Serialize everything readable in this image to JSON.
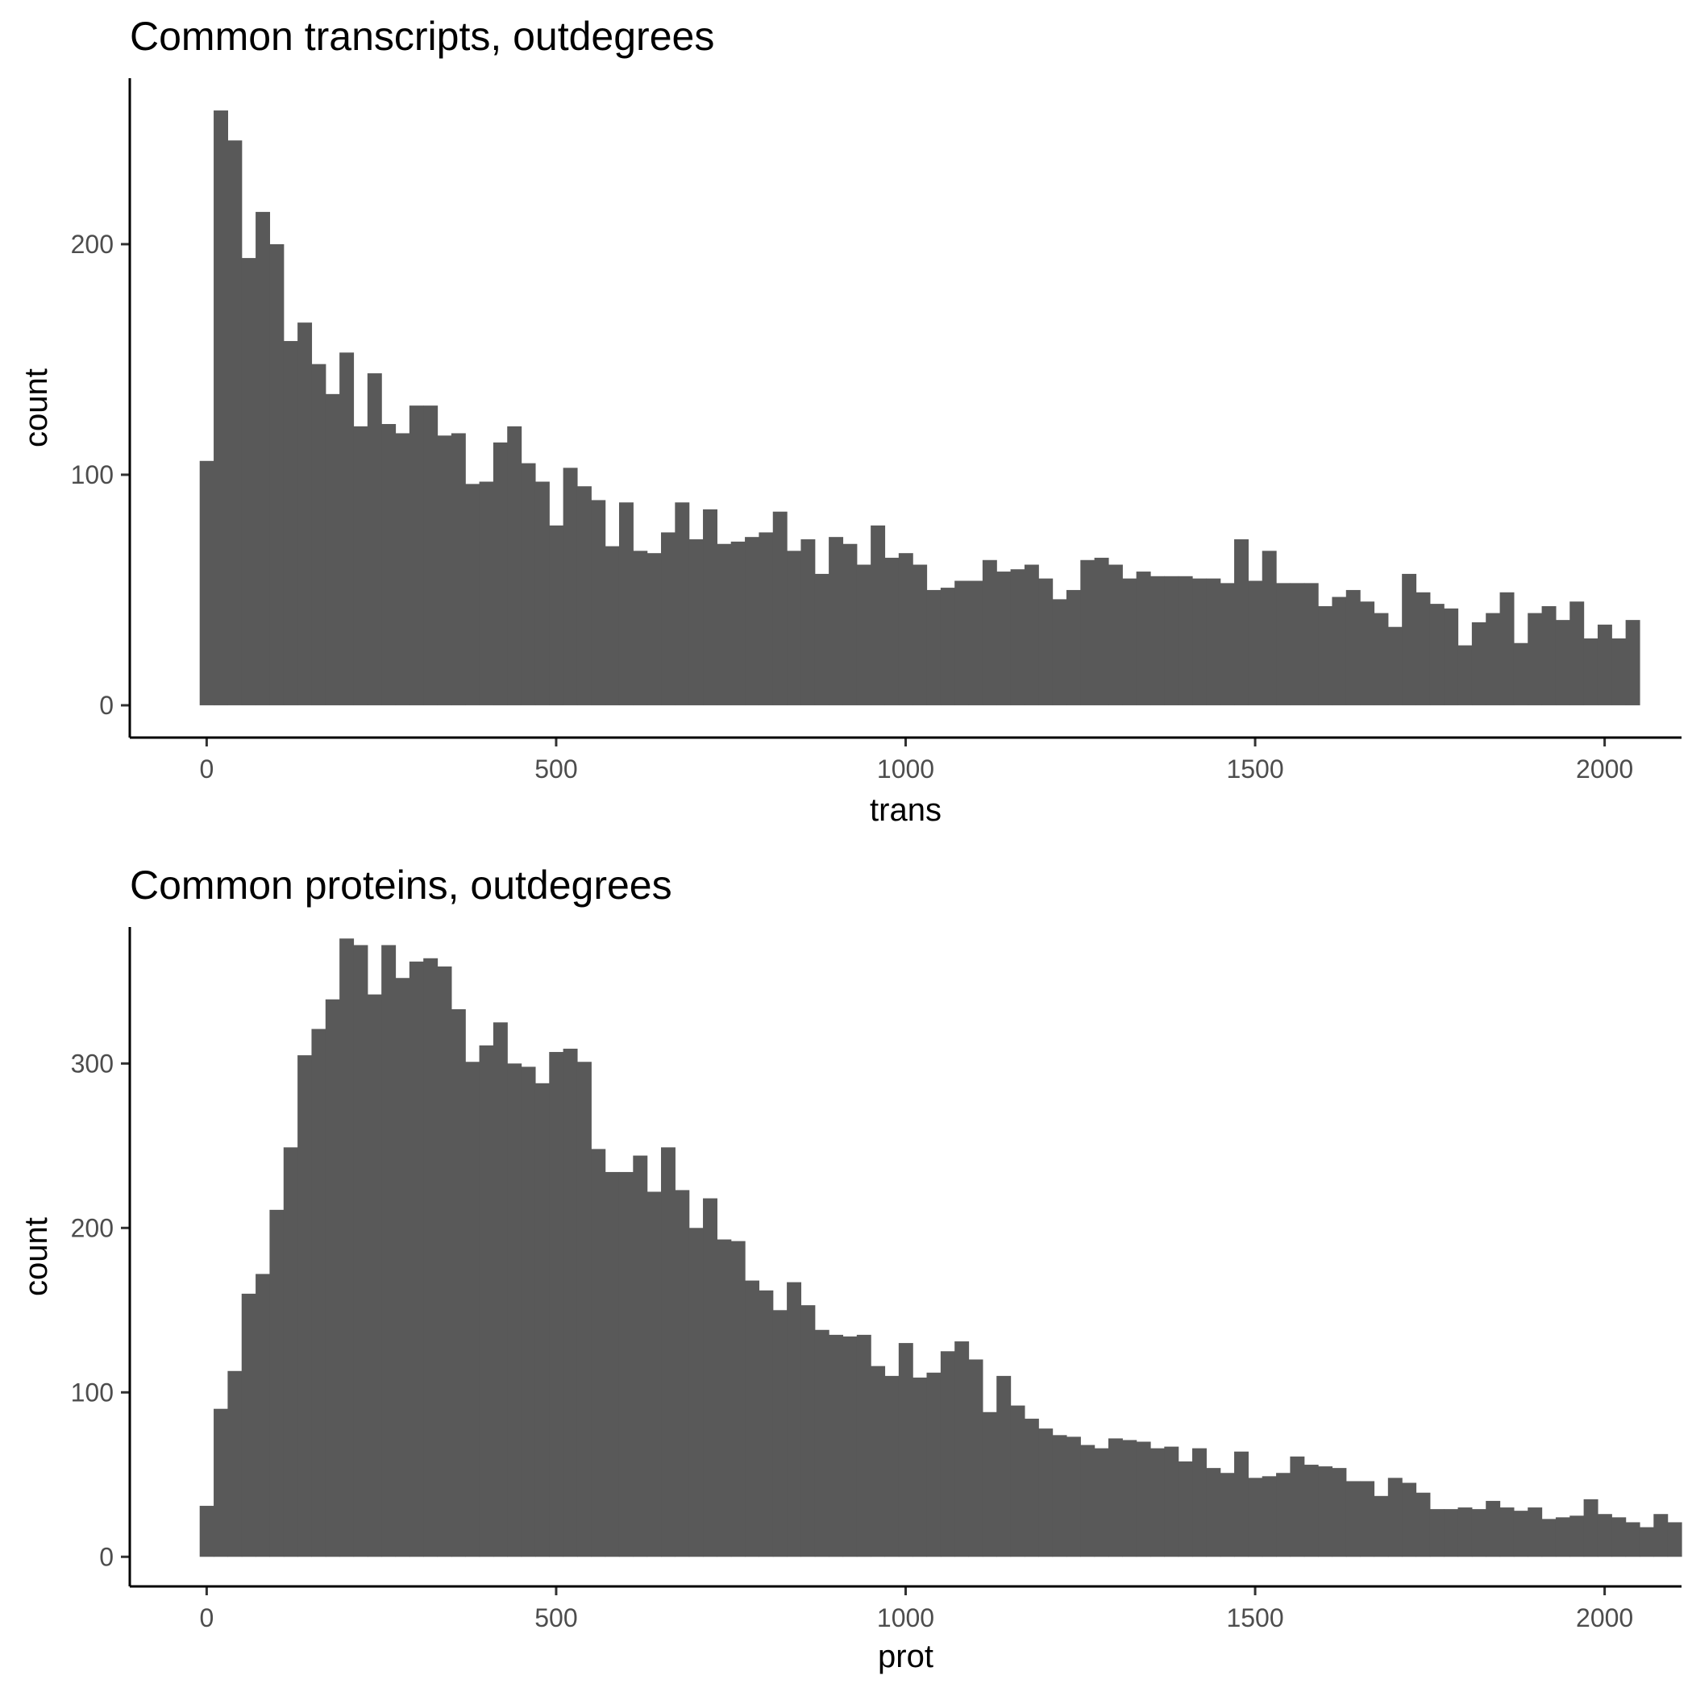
{
  "bar_color": "#595959",
  "chart_data": [
    {
      "type": "bar",
      "title": "Common transcripts, outdegrees",
      "xlabel": "trans",
      "ylabel": "count",
      "bin_width": 20,
      "x_start": -10,
      "xlim": [
        -110,
        2110
      ],
      "ylim": [
        -14,
        272
      ],
      "xticks": [
        0,
        500,
        1000,
        1500,
        2000
      ],
      "yticks": [
        0,
        100,
        200
      ],
      "grid": false,
      "values": [
        106,
        258,
        245,
        194,
        214,
        200,
        158,
        166,
        148,
        135,
        153,
        121,
        144,
        122,
        118,
        130,
        130,
        117,
        118,
        96,
        97,
        114,
        121,
        105,
        97,
        78,
        103,
        95,
        89,
        69,
        88,
        67,
        66,
        75,
        88,
        72,
        85,
        70,
        71,
        73,
        75,
        84,
        67,
        72,
        57,
        73,
        70,
        61,
        78,
        64,
        66,
        61,
        50,
        51,
        54,
        54,
        63,
        58,
        59,
        61,
        55,
        46,
        50,
        63,
        64,
        61,
        55,
        58,
        56,
        56,
        56,
        55,
        55,
        53,
        72,
        54,
        67,
        53,
        53,
        53,
        43,
        47,
        50,
        45,
        40,
        34,
        57,
        49,
        44,
        42,
        26,
        36,
        40,
        49,
        27,
        40,
        43,
        37,
        45,
        29,
        35,
        29,
        37
      ]
    },
    {
      "type": "bar",
      "title": "Common proteins, outdegrees",
      "xlabel": "prot",
      "ylabel": "count",
      "bin_width": 20,
      "x_start": -10,
      "xlim": [
        -110,
        2110
      ],
      "ylim": [
        -18,
        383
      ],
      "xticks": [
        0,
        500,
        1000,
        1500,
        2000
      ],
      "yticks": [
        0,
        100,
        200,
        300
      ],
      "grid": false,
      "values": [
        31,
        90,
        113,
        160,
        172,
        211,
        249,
        305,
        321,
        339,
        376,
        372,
        342,
        372,
        352,
        362,
        364,
        359,
        333,
        301,
        311,
        325,
        300,
        298,
        288,
        307,
        309,
        301,
        248,
        234,
        234,
        244,
        222,
        249,
        223,
        200,
        218,
        193,
        192,
        168,
        162,
        150,
        167,
        153,
        138,
        135,
        134,
        135,
        116,
        110,
        130,
        109,
        112,
        125,
        131,
        120,
        88,
        110,
        92,
        84,
        78,
        74,
        73,
        68,
        66,
        72,
        71,
        70,
        66,
        67,
        58,
        66,
        54,
        51,
        64,
        48,
        49,
        51,
        61,
        56,
        55,
        54,
        46,
        46,
        37,
        48,
        45,
        39,
        29,
        29,
        30,
        29,
        34,
        30,
        28,
        30,
        23,
        24,
        25,
        35,
        26,
        24,
        21,
        18,
        26,
        21
      ]
    }
  ]
}
